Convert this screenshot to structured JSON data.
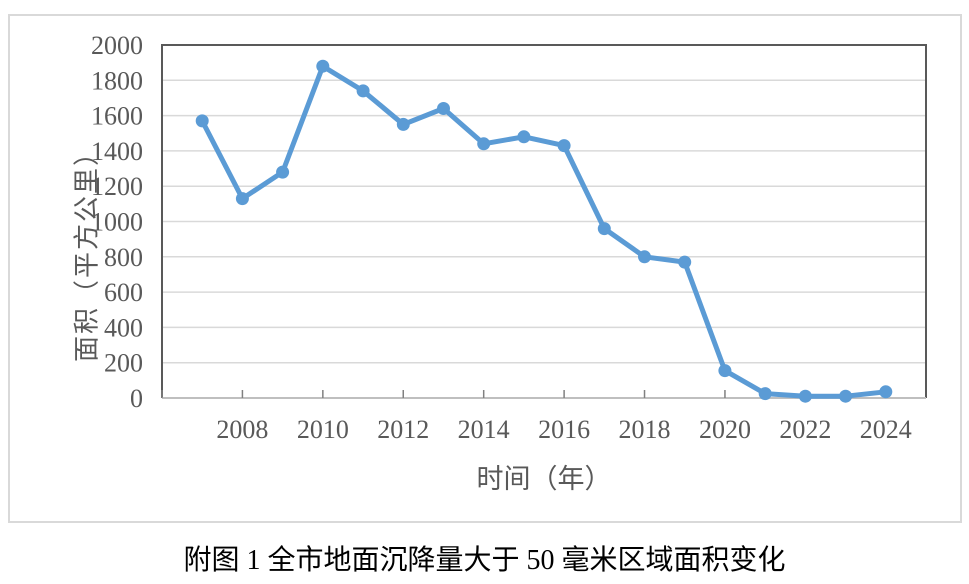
{
  "caption": "附图 1 全市地面沉降量大于 50 毫米区域面积变化",
  "chart_data": {
    "type": "line",
    "title": "",
    "xlabel": "时间（年）",
    "ylabel": "面积（平方公里）",
    "x": [
      2007,
      2008,
      2009,
      2010,
      2011,
      2012,
      2013,
      2014,
      2015,
      2016,
      2017,
      2018,
      2019,
      2020,
      2021,
      2022,
      2023,
      2024
    ],
    "values": [
      1570,
      1130,
      1280,
      1880,
      1740,
      1550,
      1640,
      1440,
      1480,
      1430,
      960,
      800,
      770,
      155,
      25,
      10,
      10,
      35
    ],
    "ylim": [
      0,
      2000
    ],
    "ytick_step": 200,
    "xlim": [
      2006,
      2025
    ],
    "xtick_step": 2,
    "xticks": [
      2008,
      2010,
      2012,
      2014,
      2016,
      2018,
      2020,
      2022,
      2024
    ],
    "grid": "horizontal",
    "legend": "none",
    "marker": "circle",
    "colors": {
      "line": "#5B9BD5",
      "gridline": "#D9D9D9",
      "plot_border": "#595959",
      "x_axis_line": "#BFBFBF",
      "tick": "#808080",
      "tick_label": "#595959",
      "axis_title": "#595959",
      "frame_border": "#D9D9D9",
      "caption": "#000000"
    }
  }
}
